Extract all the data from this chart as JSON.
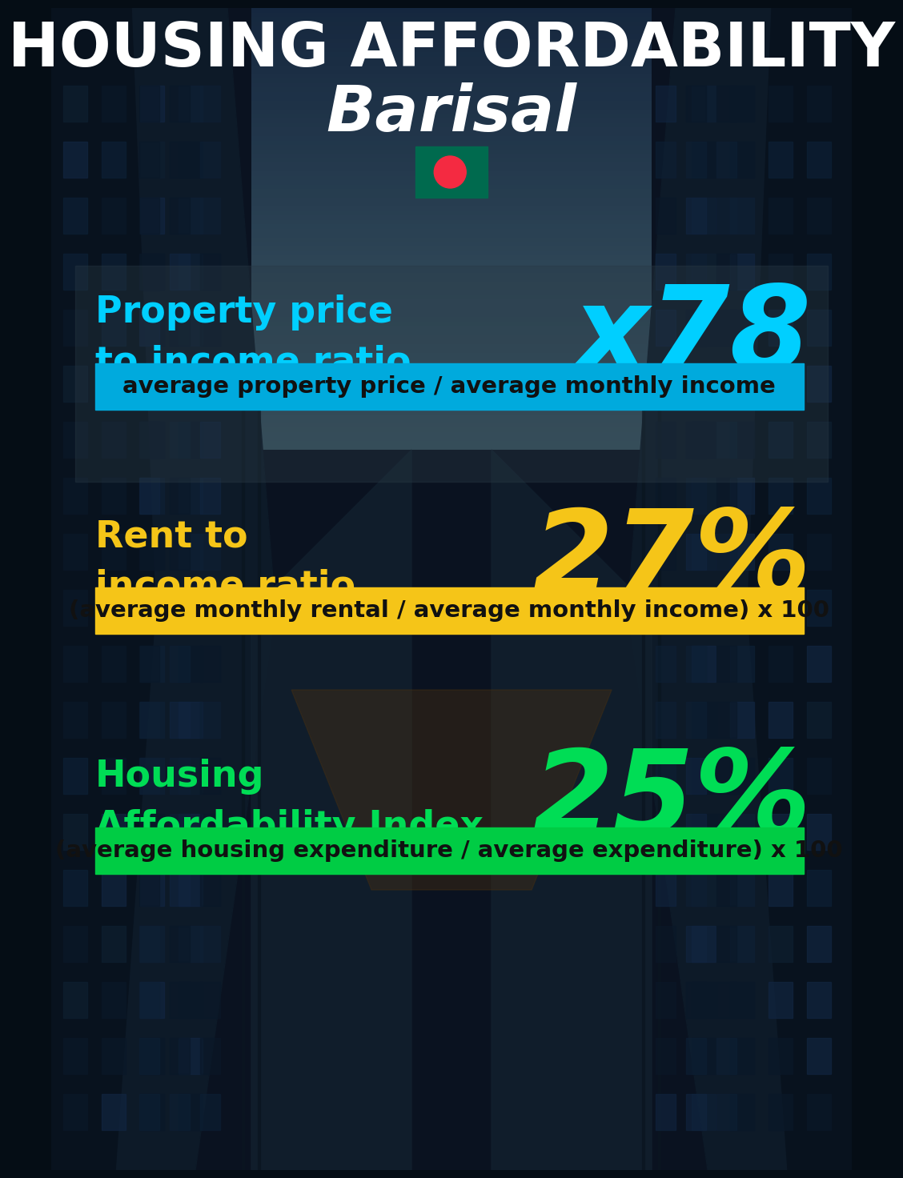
{
  "title_line1": "HOUSING AFFORDABILITY",
  "title_line2": "Barisal",
  "bg_color": "#050d15",
  "title_color": "#ffffff",
  "subtitle_color": "#ffffff",
  "section1_label": "Property price\nto income ratio",
  "section1_value": "x78",
  "section1_label_color": "#00cfff",
  "section1_value_color": "#00cfff",
  "section1_band_text": "average property price / average monthly income",
  "section1_band_bg": "#00aadd",
  "section1_band_text_color": "#111111",
  "section2_label": "Rent to\nincome ratio",
  "section2_value": "27%",
  "section2_label_color": "#f5c518",
  "section2_value_color": "#f5c518",
  "section2_band_text": "(average monthly rental / average monthly income) x 100",
  "section2_band_bg": "#f5c518",
  "section2_band_text_color": "#111111",
  "section3_label": "Housing\nAffordability Index",
  "section3_value": "25%",
  "section3_label_color": "#00dd55",
  "section3_value_color": "#00dd55",
  "section3_band_text": "(average housing expenditure / average expenditure) x 100",
  "section3_band_bg": "#00cc44",
  "section3_band_text_color": "#111111",
  "flag_green": "#006a4e",
  "flag_red": "#f42a41"
}
